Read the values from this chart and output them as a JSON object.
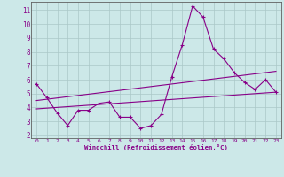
{
  "xlabel": "Windchill (Refroidissement éolien,°C)",
  "bg_color": "#cce8e8",
  "grid_color": "#aac8c8",
  "line_color": "#880088",
  "xlim": [
    -0.5,
    23.5
  ],
  "ylim": [
    1.8,
    11.6
  ],
  "yticks": [
    2,
    3,
    4,
    5,
    6,
    7,
    8,
    9,
    10,
    11
  ],
  "xticks": [
    0,
    1,
    2,
    3,
    4,
    5,
    6,
    7,
    8,
    9,
    10,
    11,
    12,
    13,
    14,
    15,
    16,
    17,
    18,
    19,
    20,
    21,
    22,
    23
  ],
  "series_main_x": [
    0,
    1,
    2,
    3,
    4,
    5,
    6,
    7,
    8,
    9,
    10,
    11,
    12,
    13,
    14,
    15,
    16,
    17,
    18,
    19,
    20,
    21,
    22,
    23
  ],
  "series_main_y": [
    5.7,
    4.7,
    3.6,
    2.7,
    3.8,
    3.8,
    4.3,
    4.4,
    3.3,
    3.3,
    2.5,
    2.7,
    3.5,
    6.2,
    8.5,
    11.3,
    10.5,
    8.2,
    7.5,
    6.5,
    5.8,
    5.3,
    6.0,
    5.1
  ],
  "line1_x": [
    0,
    23
  ],
  "line1_y": [
    4.5,
    6.6
  ],
  "line2_x": [
    0,
    23
  ],
  "line2_y": [
    3.9,
    5.1
  ]
}
